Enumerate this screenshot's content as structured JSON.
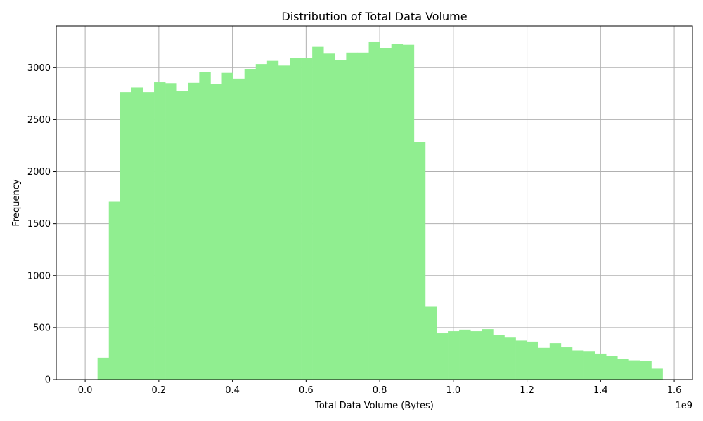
{
  "chart_data": {
    "type": "bar",
    "title": "Distribution of Total Data Volume",
    "xlabel": "Total Data Volume (Bytes)",
    "ylabel": "Frequency",
    "x_offset_label": "1e9",
    "bin_start": 0.0335,
    "bin_width": 0.0307,
    "values": [
      210,
      1710,
      2765,
      2810,
      2765,
      2860,
      2845,
      2775,
      2855,
      2955,
      2840,
      2950,
      2895,
      2985,
      3035,
      3065,
      3020,
      3095,
      3090,
      3200,
      3135,
      3070,
      3145,
      3145,
      3245,
      3190,
      3225,
      3220,
      2285,
      705,
      445,
      465,
      480,
      465,
      485,
      430,
      410,
      375,
      365,
      305,
      350,
      310,
      280,
      275,
      250,
      225,
      200,
      185,
      180,
      105
    ],
    "xlim": [
      -0.0785,
      1.6495
    ],
    "ylim": [
      0,
      3400
    ],
    "xticks": [
      0.0,
      0.2,
      0.4,
      0.6,
      0.8,
      1.0,
      1.2,
      1.4,
      1.6
    ],
    "xtick_labels": [
      "0.0",
      "0.2",
      "0.4",
      "0.6",
      "0.8",
      "1.0",
      "1.2",
      "1.4",
      "1.6"
    ],
    "yticks": [
      0,
      500,
      1000,
      1500,
      2000,
      2500,
      3000
    ],
    "ytick_labels": [
      "0",
      "500",
      "1000",
      "1500",
      "2000",
      "2500",
      "3000"
    ],
    "grid": true,
    "bar_color": "#90ee90",
    "grid_color": "#b0b0b0"
  }
}
